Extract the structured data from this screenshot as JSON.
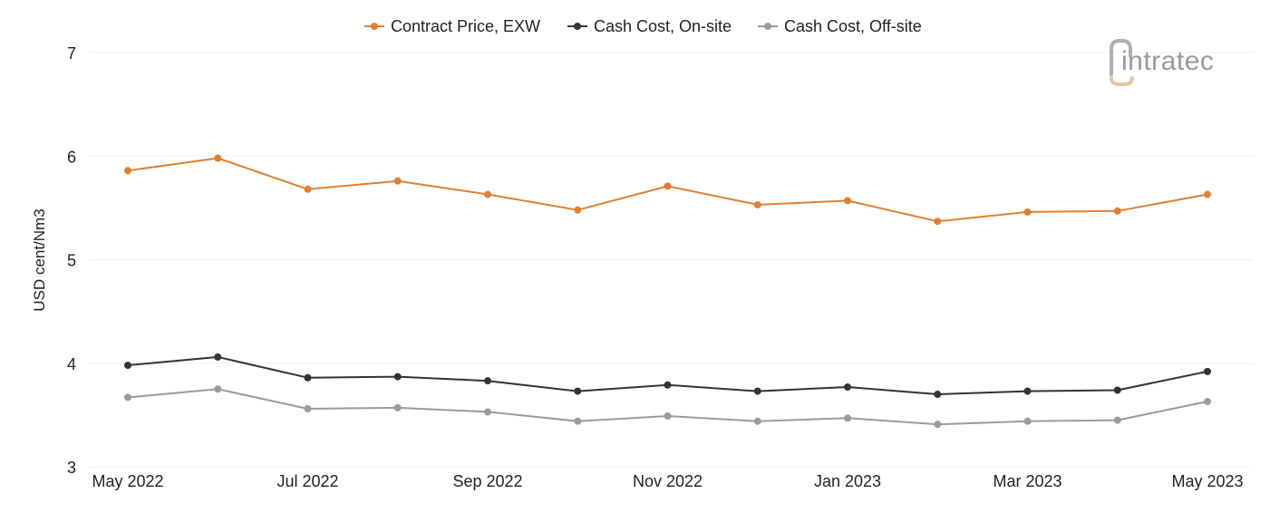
{
  "chart_data": {
    "type": "line",
    "title": "",
    "xlabel": "",
    "ylabel": "USD cent/Nm3",
    "ylim": [
      3,
      7
    ],
    "yticks": [
      3,
      4,
      5,
      6,
      7
    ],
    "grid": true,
    "legend_position": "top-center",
    "x": [
      "May 2022",
      "Jun 2022",
      "Jul 2022",
      "Aug 2022",
      "Sep 2022",
      "Oct 2022",
      "Nov 2022",
      "Dec 2022",
      "Jan 2023",
      "Feb 2023",
      "Mar 2023",
      "Apr 2023",
      "May 2023"
    ],
    "x_tick_labels": [
      "May 2022",
      "",
      "Jul 2022",
      "",
      "Sep 2022",
      "",
      "Nov 2022",
      "",
      "Jan 2023",
      "",
      "Mar 2023",
      "",
      "May 2023"
    ],
    "series": [
      {
        "name": "Contract Price, EXW",
        "color": "#e07f33",
        "values": [
          5.86,
          5.98,
          5.68,
          5.76,
          5.63,
          5.48,
          5.71,
          5.53,
          5.57,
          5.37,
          5.46,
          5.47,
          5.63
        ]
      },
      {
        "name": "Cash Cost, On-site",
        "color": "#333333",
        "values": [
          3.98,
          4.06,
          3.86,
          3.87,
          3.83,
          3.73,
          3.79,
          3.73,
          3.77,
          3.7,
          3.73,
          3.74,
          3.92
        ]
      },
      {
        "name": "Cash Cost, Off-site",
        "color": "#9b9b9b",
        "values": [
          3.67,
          3.75,
          3.56,
          3.57,
          3.53,
          3.44,
          3.49,
          3.44,
          3.47,
          3.41,
          3.44,
          3.45,
          3.63
        ]
      }
    ]
  },
  "logo": {
    "text": "intratec",
    "icon": "intratec-logo-icon"
  }
}
